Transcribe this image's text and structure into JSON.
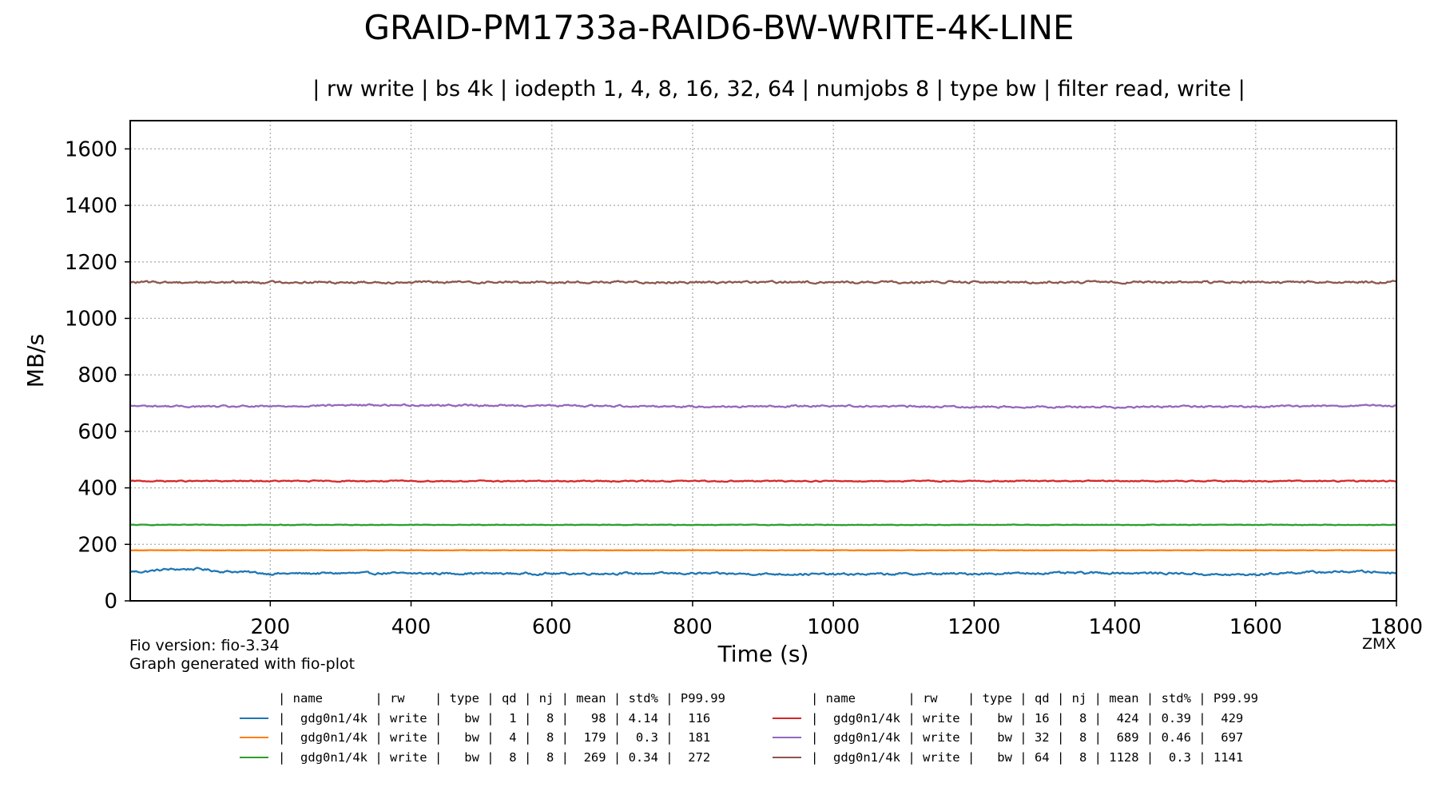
{
  "chart_data": {
    "type": "line",
    "title": "GRAID-PM1733a-RAID6-BW-WRITE-4K-LINE",
    "subtitle": "| rw write | bs 4k | iodepth 1, 4, 8, 16, 32, 64 | numjobs 8 | type bw | filter read, write |",
    "xlabel": "Time (s)",
    "ylabel": "MB/s",
    "xlim": [
      1,
      1800
    ],
    "ylim": [
      0,
      1700
    ],
    "xticks": [
      200,
      400,
      600,
      800,
      1000,
      1200,
      1400,
      1600,
      1800
    ],
    "yticks": [
      0,
      200,
      400,
      600,
      800,
      1000,
      1200,
      1400,
      1600
    ],
    "grid": true,
    "grid_style": "dotted",
    "series": [
      {
        "name": "gdg0n1/4k",
        "color": "#1f77b4",
        "mean": 98,
        "jitter": 3.0,
        "x": [
          1,
          20,
          50,
          100,
          130,
          160,
          200,
          250,
          300,
          400,
          500,
          600,
          700,
          800,
          900,
          1000,
          1100,
          1200,
          1300,
          1400,
          1500,
          1550,
          1600,
          1650,
          1700,
          1750,
          1800
        ],
        "y": [
          104,
          103,
          111,
          113,
          104,
          103,
          96,
          97,
          98,
          97,
          97,
          96,
          97,
          97,
          95,
          94,
          95,
          96,
          98,
          99,
          97,
          92,
          93,
          100,
          102,
          104,
          99
        ]
      },
      {
        "name": "gdg0n1/4k",
        "color": "#ff7f0e",
        "mean": 179,
        "jitter": 0.5,
        "x": [
          1,
          1800
        ],
        "y": [
          179,
          179
        ]
      },
      {
        "name": "gdg0n1/4k",
        "color": "#2ca02c",
        "mean": 269,
        "jitter": 0.8,
        "x": [
          1,
          1800
        ],
        "y": [
          269,
          269
        ]
      },
      {
        "name": "gdg0n1/4k",
        "color": "#d62728",
        "mean": 424,
        "jitter": 1.6,
        "x": [
          1,
          1800
        ],
        "y": [
          424,
          424
        ]
      },
      {
        "name": "gdg0n1/4k",
        "color": "#9467bd",
        "mean": 689,
        "jitter": 2.6,
        "x": [
          1,
          100,
          200,
          300,
          400,
          500,
          600,
          700,
          800,
          900,
          1000,
          1100,
          1200,
          1300,
          1400,
          1500,
          1600,
          1700,
          1800
        ],
        "y": [
          690,
          688,
          688,
          693,
          693,
          692,
          691,
          690,
          688,
          688,
          691,
          688,
          687,
          687,
          686,
          688,
          687,
          691,
          690
        ]
      },
      {
        "name": "gdg0n1/4k",
        "color": "#8c564b",
        "mean": 1128,
        "jitter": 3.2,
        "x": [
          1,
          1800
        ],
        "y": [
          1128,
          1128
        ]
      }
    ]
  },
  "footer": {
    "fio_version": "Fio version: fio-3.34",
    "generated": "Graph generated with fio-plot",
    "author": "ZMX"
  },
  "legend": {
    "header": "| name       | rw    | type | qd | nj | mean | std% | P99.99",
    "left": [
      {
        "color": "#1f77b4",
        "text": "|  gdg0n1/4k | write |   bw |  1 |  8 |   98 | 4.14 |  116"
      },
      {
        "color": "#ff7f0e",
        "text": "|  gdg0n1/4k | write |   bw |  4 |  8 |  179 |  0.3 |  181"
      },
      {
        "color": "#2ca02c",
        "text": "|  gdg0n1/4k | write |   bw |  8 |  8 |  269 | 0.34 |  272"
      }
    ],
    "right": [
      {
        "color": "#d62728",
        "text": "|  gdg0n1/4k | write |   bw | 16 |  8 |  424 | 0.39 |  429"
      },
      {
        "color": "#9467bd",
        "text": "|  gdg0n1/4k | write |   bw | 32 |  8 |  689 | 0.46 |  697"
      },
      {
        "color": "#8c564b",
        "text": "|  gdg0n1/4k | write |   bw | 64 |  8 | 1128 |  0.3 | 1141"
      }
    ]
  }
}
